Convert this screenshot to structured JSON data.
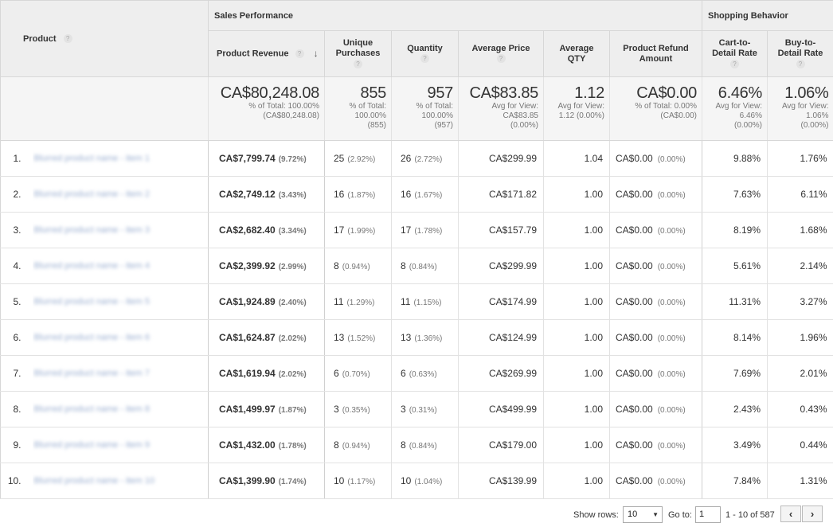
{
  "headers": {
    "product": "Product",
    "group_sales": "Sales Performance",
    "group_shopping": "Shopping Behavior",
    "product_revenue": "Product Revenue",
    "unique_purchases": "Unique Purchases",
    "quantity": "Quantity",
    "average_price": "Average Price",
    "average_qty": "Average QTY",
    "product_refund_amount": "Product Refund Amount",
    "cart_to_detail_rate": "Cart-to-Detail Rate",
    "buy_to_detail_rate": "Buy-to-Detail Rate",
    "help_glyph": "?",
    "sort_glyph": "↓"
  },
  "totals": {
    "product_revenue": {
      "value": "CA$80,248.08",
      "sub1": "% of Total: 100.00%",
      "sub2": "(CA$80,248.08)"
    },
    "unique_purchases": {
      "value": "855",
      "sub1": "% of Total:",
      "sub2": "100.00%",
      "sub3": "(855)"
    },
    "quantity": {
      "value": "957",
      "sub1": "% of Total:",
      "sub2": "100.00%",
      "sub3": "(957)"
    },
    "average_price": {
      "value": "CA$83.85",
      "sub1": "Avg for View:",
      "sub2": "CA$83.85",
      "sub3": "(0.00%)"
    },
    "average_qty": {
      "value": "1.12",
      "sub1": "Avg for View:",
      "sub2": "1.12 (0.00%)"
    },
    "product_refund_amount": {
      "value": "CA$0.00",
      "sub1": "% of Total: 0.00%",
      "sub2": "(CA$0.00)"
    },
    "cart_to_detail_rate": {
      "value": "6.46%",
      "sub1": "Avg for View:",
      "sub2": "6.46%",
      "sub3": "(0.00%)"
    },
    "buy_to_detail_rate": {
      "value": "1.06%",
      "sub1": "Avg for View:",
      "sub2": "1.06%",
      "sub3": "(0.00%)"
    }
  },
  "rows": [
    {
      "index": "1.",
      "product": "Blurred product name - item 1",
      "revenue": "CA$7,799.74",
      "revenue_pct": "(9.72%)",
      "unique_purchases": "25",
      "unique_pct": "(2.92%)",
      "quantity": "26",
      "quantity_pct": "(2.72%)",
      "average_price": "CA$299.99",
      "average_qty": "1.04",
      "refund": "CA$0.00",
      "refund_pct": "(0.00%)",
      "cart_to_detail": "9.88%",
      "buy_to_detail": "1.76%"
    },
    {
      "index": "2.",
      "product": "Blurred product name - item 2",
      "revenue": "CA$2,749.12",
      "revenue_pct": "(3.43%)",
      "unique_purchases": "16",
      "unique_pct": "(1.87%)",
      "quantity": "16",
      "quantity_pct": "(1.67%)",
      "average_price": "CA$171.82",
      "average_qty": "1.00",
      "refund": "CA$0.00",
      "refund_pct": "(0.00%)",
      "cart_to_detail": "7.63%",
      "buy_to_detail": "6.11%"
    },
    {
      "index": "3.",
      "product": "Blurred product name - item 3",
      "revenue": "CA$2,682.40",
      "revenue_pct": "(3.34%)",
      "unique_purchases": "17",
      "unique_pct": "(1.99%)",
      "quantity": "17",
      "quantity_pct": "(1.78%)",
      "average_price": "CA$157.79",
      "average_qty": "1.00",
      "refund": "CA$0.00",
      "refund_pct": "(0.00%)",
      "cart_to_detail": "8.19%",
      "buy_to_detail": "1.68%"
    },
    {
      "index": "4.",
      "product": "Blurred product name - item 4",
      "revenue": "CA$2,399.92",
      "revenue_pct": "(2.99%)",
      "unique_purchases": "8",
      "unique_pct": "(0.94%)",
      "quantity": "8",
      "quantity_pct": "(0.84%)",
      "average_price": "CA$299.99",
      "average_qty": "1.00",
      "refund": "CA$0.00",
      "refund_pct": "(0.00%)",
      "cart_to_detail": "5.61%",
      "buy_to_detail": "2.14%"
    },
    {
      "index": "5.",
      "product": "Blurred product name - item 5",
      "revenue": "CA$1,924.89",
      "revenue_pct": "(2.40%)",
      "unique_purchases": "11",
      "unique_pct": "(1.29%)",
      "quantity": "11",
      "quantity_pct": "(1.15%)",
      "average_price": "CA$174.99",
      "average_qty": "1.00",
      "refund": "CA$0.00",
      "refund_pct": "(0.00%)",
      "cart_to_detail": "11.31%",
      "buy_to_detail": "3.27%"
    },
    {
      "index": "6.",
      "product": "Blurred product name - item 6",
      "revenue": "CA$1,624.87",
      "revenue_pct": "(2.02%)",
      "unique_purchases": "13",
      "unique_pct": "(1.52%)",
      "quantity": "13",
      "quantity_pct": "(1.36%)",
      "average_price": "CA$124.99",
      "average_qty": "1.00",
      "refund": "CA$0.00",
      "refund_pct": "(0.00%)",
      "cart_to_detail": "8.14%",
      "buy_to_detail": "1.96%"
    },
    {
      "index": "7.",
      "product": "Blurred product name - item 7",
      "revenue": "CA$1,619.94",
      "revenue_pct": "(2.02%)",
      "unique_purchases": "6",
      "unique_pct": "(0.70%)",
      "quantity": "6",
      "quantity_pct": "(0.63%)",
      "average_price": "CA$269.99",
      "average_qty": "1.00",
      "refund": "CA$0.00",
      "refund_pct": "(0.00%)",
      "cart_to_detail": "7.69%",
      "buy_to_detail": "2.01%"
    },
    {
      "index": "8.",
      "product": "Blurred product name - item 8",
      "revenue": "CA$1,499.97",
      "revenue_pct": "(1.87%)",
      "unique_purchases": "3",
      "unique_pct": "(0.35%)",
      "quantity": "3",
      "quantity_pct": "(0.31%)",
      "average_price": "CA$499.99",
      "average_qty": "1.00",
      "refund": "CA$0.00",
      "refund_pct": "(0.00%)",
      "cart_to_detail": "2.43%",
      "buy_to_detail": "0.43%"
    },
    {
      "index": "9.",
      "product": "Blurred product name - item 9",
      "revenue": "CA$1,432.00",
      "revenue_pct": "(1.78%)",
      "unique_purchases": "8",
      "unique_pct": "(0.94%)",
      "quantity": "8",
      "quantity_pct": "(0.84%)",
      "average_price": "CA$179.00",
      "average_qty": "1.00",
      "refund": "CA$0.00",
      "refund_pct": "(0.00%)",
      "cart_to_detail": "3.49%",
      "buy_to_detail": "0.44%"
    },
    {
      "index": "10.",
      "product": "Blurred product name - item 10",
      "revenue": "CA$1,399.90",
      "revenue_pct": "(1.74%)",
      "unique_purchases": "10",
      "unique_pct": "(1.17%)",
      "quantity": "10",
      "quantity_pct": "(1.04%)",
      "average_price": "CA$139.99",
      "average_qty": "1.00",
      "refund": "CA$0.00",
      "refund_pct": "(0.00%)",
      "cart_to_detail": "7.84%",
      "buy_to_detail": "1.31%"
    }
  ],
  "pager": {
    "show_rows_label": "Show rows:",
    "show_rows_value": "10",
    "goto_label": "Go to:",
    "goto_value": "1",
    "range_text": "1 - 10 of 587",
    "prev_glyph": "‹",
    "next_glyph": "›",
    "dropdown_glyph": "▼"
  },
  "colors": {
    "header_bg": "#eeeeee",
    "totals_bg": "#f5f5f5",
    "border": "#d7d7d7",
    "product_link_blurred": "#9aaed0"
  }
}
